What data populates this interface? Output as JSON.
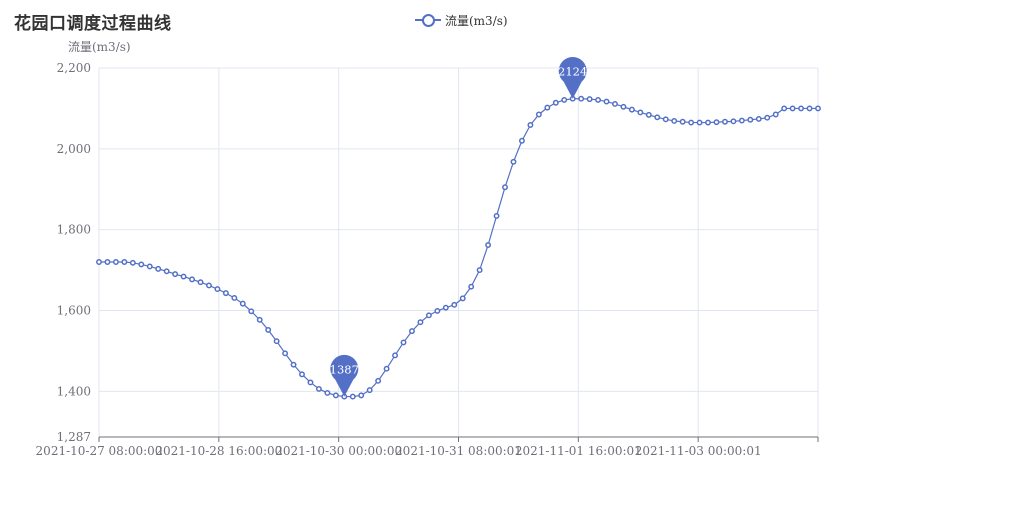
{
  "chart_data": {
    "type": "line",
    "title": "花园口调度过程曲线",
    "ylabel": "流量(m3/s)",
    "ylim": [
      1287,
      2200
    ],
    "yticks": [
      1287,
      1400,
      1600,
      1800,
      2000,
      2200
    ],
    "ytick_labels": [
      "1,287",
      "1,400",
      "1,600",
      "1,800",
      "2,000",
      "2,200"
    ],
    "xticks": [
      "2021-10-27 08:00:00",
      "2021-10-28 16:00:00",
      "2021-10-30 00:00:00",
      "2021-10-31 08:00:01",
      "2021-11-01 16:00:01",
      "2021-11-03 00:00:01"
    ],
    "grid": true,
    "legend_position": "top-center",
    "color": "#5470c6",
    "series": [
      {
        "name": "流量(m3/s)",
        "values": [
          1720,
          1720,
          1720,
          1720,
          1718,
          1714,
          1709,
          1703,
          1697,
          1690,
          1684,
          1677,
          1670,
          1662,
          1653,
          1643,
          1631,
          1617,
          1598,
          1577,
          1552,
          1524,
          1494,
          1466,
          1442,
          1422,
          1406,
          1396,
          1390,
          1387,
          1387,
          1390,
          1403,
          1426,
          1456,
          1489,
          1521,
          1549,
          1571,
          1588,
          1599,
          1607,
          1614,
          1630,
          1659,
          1700,
          1762,
          1834,
          1905,
          1968,
          2020,
          2059,
          2085,
          2102,
          2114,
          2121,
          2124,
          2124,
          2123,
          2121,
          2117,
          2111,
          2104,
          2097,
          2090,
          2084,
          2078,
          2073,
          2069,
          2067,
          2065,
          2065,
          2065,
          2066,
          2067,
          2068,
          2070,
          2072,
          2074,
          2077,
          2085,
          2100,
          2100,
          2100,
          2100,
          2100
        ]
      }
    ],
    "markpoints": [
      {
        "label": "2124",
        "type": "max"
      },
      {
        "label": "1387",
        "type": "min"
      }
    ]
  }
}
